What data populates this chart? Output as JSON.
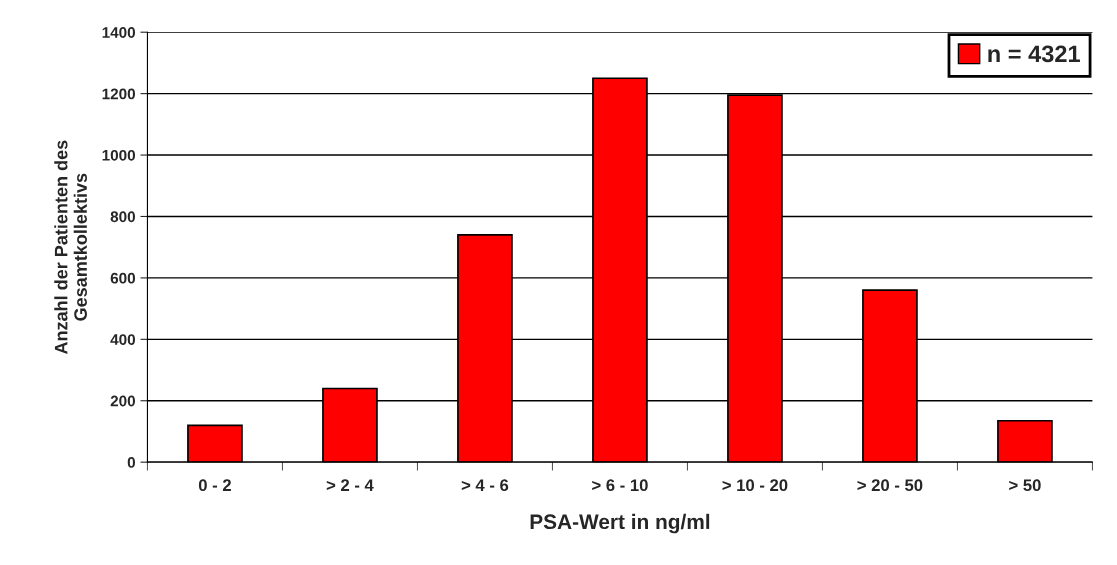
{
  "chart_data": {
    "type": "bar",
    "xlabel": "PSA-Wert in ng/ml",
    "ylabel": "Anzahl der Patienten des\nGesamtkollektivs",
    "categories": [
      "0 - 2",
      "> 2 - 4",
      "> 4 - 6",
      "> 6 - 10",
      "> 10 - 20",
      "> 20 - 50",
      "> 50"
    ],
    "series": [
      {
        "name": "n = 4321",
        "color": "#ff0000",
        "values": [
          120,
          240,
          740,
          1250,
          1195,
          560,
          135
        ]
      }
    ],
    "ylim": [
      0,
      1400
    ],
    "yticks": [
      0,
      200,
      400,
      600,
      800,
      1000,
      1200,
      1400
    ],
    "grid": "y",
    "legend": "top right"
  }
}
